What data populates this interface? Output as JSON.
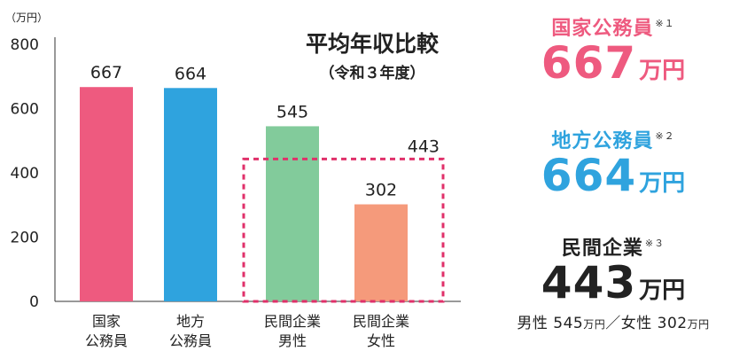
{
  "chart_data": {
    "type": "bar",
    "title": "平均年収比較",
    "subtitle": "（令和３年度）",
    "unit_label": "（万円）",
    "ylim": [
      0,
      800
    ],
    "yticks": [
      "0",
      "200",
      "400",
      "600",
      "800"
    ],
    "categories": [
      [
        "国家",
        "公務員"
      ],
      [
        "地方",
        "公務員"
      ],
      [
        "民間企業",
        "男性"
      ],
      [
        "民間企業",
        "女性"
      ]
    ],
    "values": [
      667,
      664,
      545,
      302
    ],
    "value_labels": [
      "667",
      "664",
      "545",
      "302"
    ],
    "colors": [
      "#ee5a7f",
      "#2fa3de",
      "#82cb9b",
      "#f59a7b"
    ],
    "group_box": {
      "categories": [
        2,
        3
      ],
      "value": 443,
      "label": "443",
      "color": "#e0306a",
      "style": "dashed"
    },
    "grid": false
  },
  "side": {
    "national": {
      "label": "国家公務員",
      "note": "※１",
      "value": "667",
      "unit": "万円",
      "color": "#ee5a7f"
    },
    "local": {
      "label": "地方公務員",
      "note": "※２",
      "value": "664",
      "unit": "万円",
      "color": "#2fa3de"
    },
    "private": {
      "label": "民間企業",
      "note": "※３",
      "value": "443",
      "unit": "万円",
      "color": "#222222",
      "breakdown": {
        "male_label": "男性",
        "male_value": "545",
        "male_unit": "万円",
        "separator": "／",
        "female_label": "女性",
        "female_value": "302",
        "female_unit": "万円"
      }
    }
  }
}
